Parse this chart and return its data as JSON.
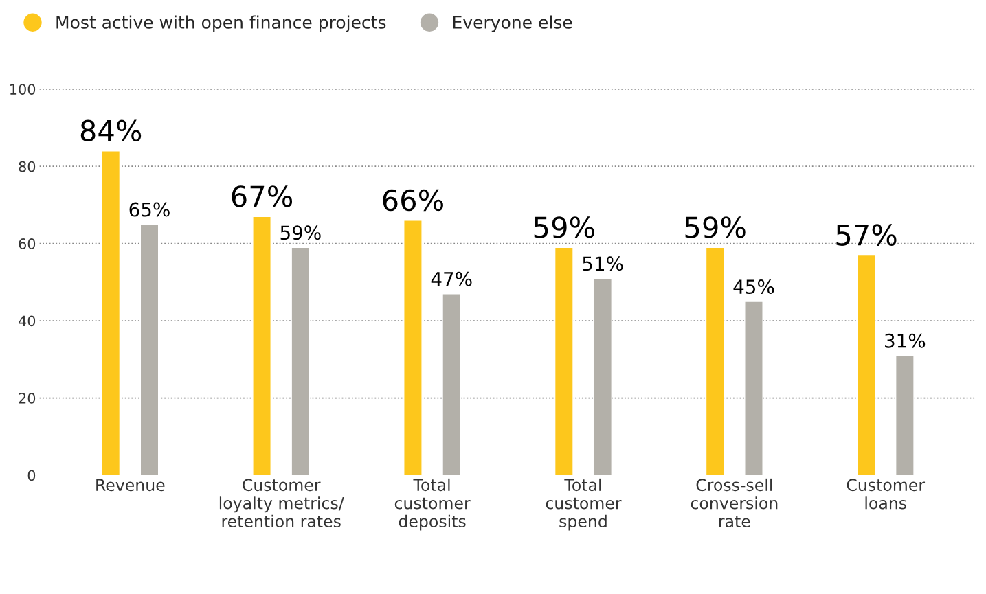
{
  "chart_data": {
    "type": "bar",
    "categories": [
      "Revenue",
      "Customer\nloyalty metrics/\nretention rates",
      "Total\ncustomer\ndeposits",
      "Total\ncustomer\nspend",
      "Cross-sell\nconversion\nrate",
      "Customer\nloans"
    ],
    "series": [
      {
        "name": "Most active with open finance projects",
        "color": "#fdc71c",
        "values": [
          84,
          67,
          66,
          59,
          59,
          57
        ],
        "value_labels": [
          "84%",
          "67%",
          "66%",
          "59%",
          "59%",
          "57%"
        ]
      },
      {
        "name": "Everyone else",
        "color": "#b3b0a9",
        "values": [
          65,
          59,
          47,
          51,
          45,
          31
        ],
        "value_labels": [
          "65%",
          "59%",
          "47%",
          "51%",
          "45%",
          "31%"
        ]
      }
    ],
    "ylim": [
      0,
      100
    ],
    "yticks": [
      0,
      20,
      40,
      60,
      80,
      100
    ],
    "grid": "y",
    "legend": "top left"
  }
}
